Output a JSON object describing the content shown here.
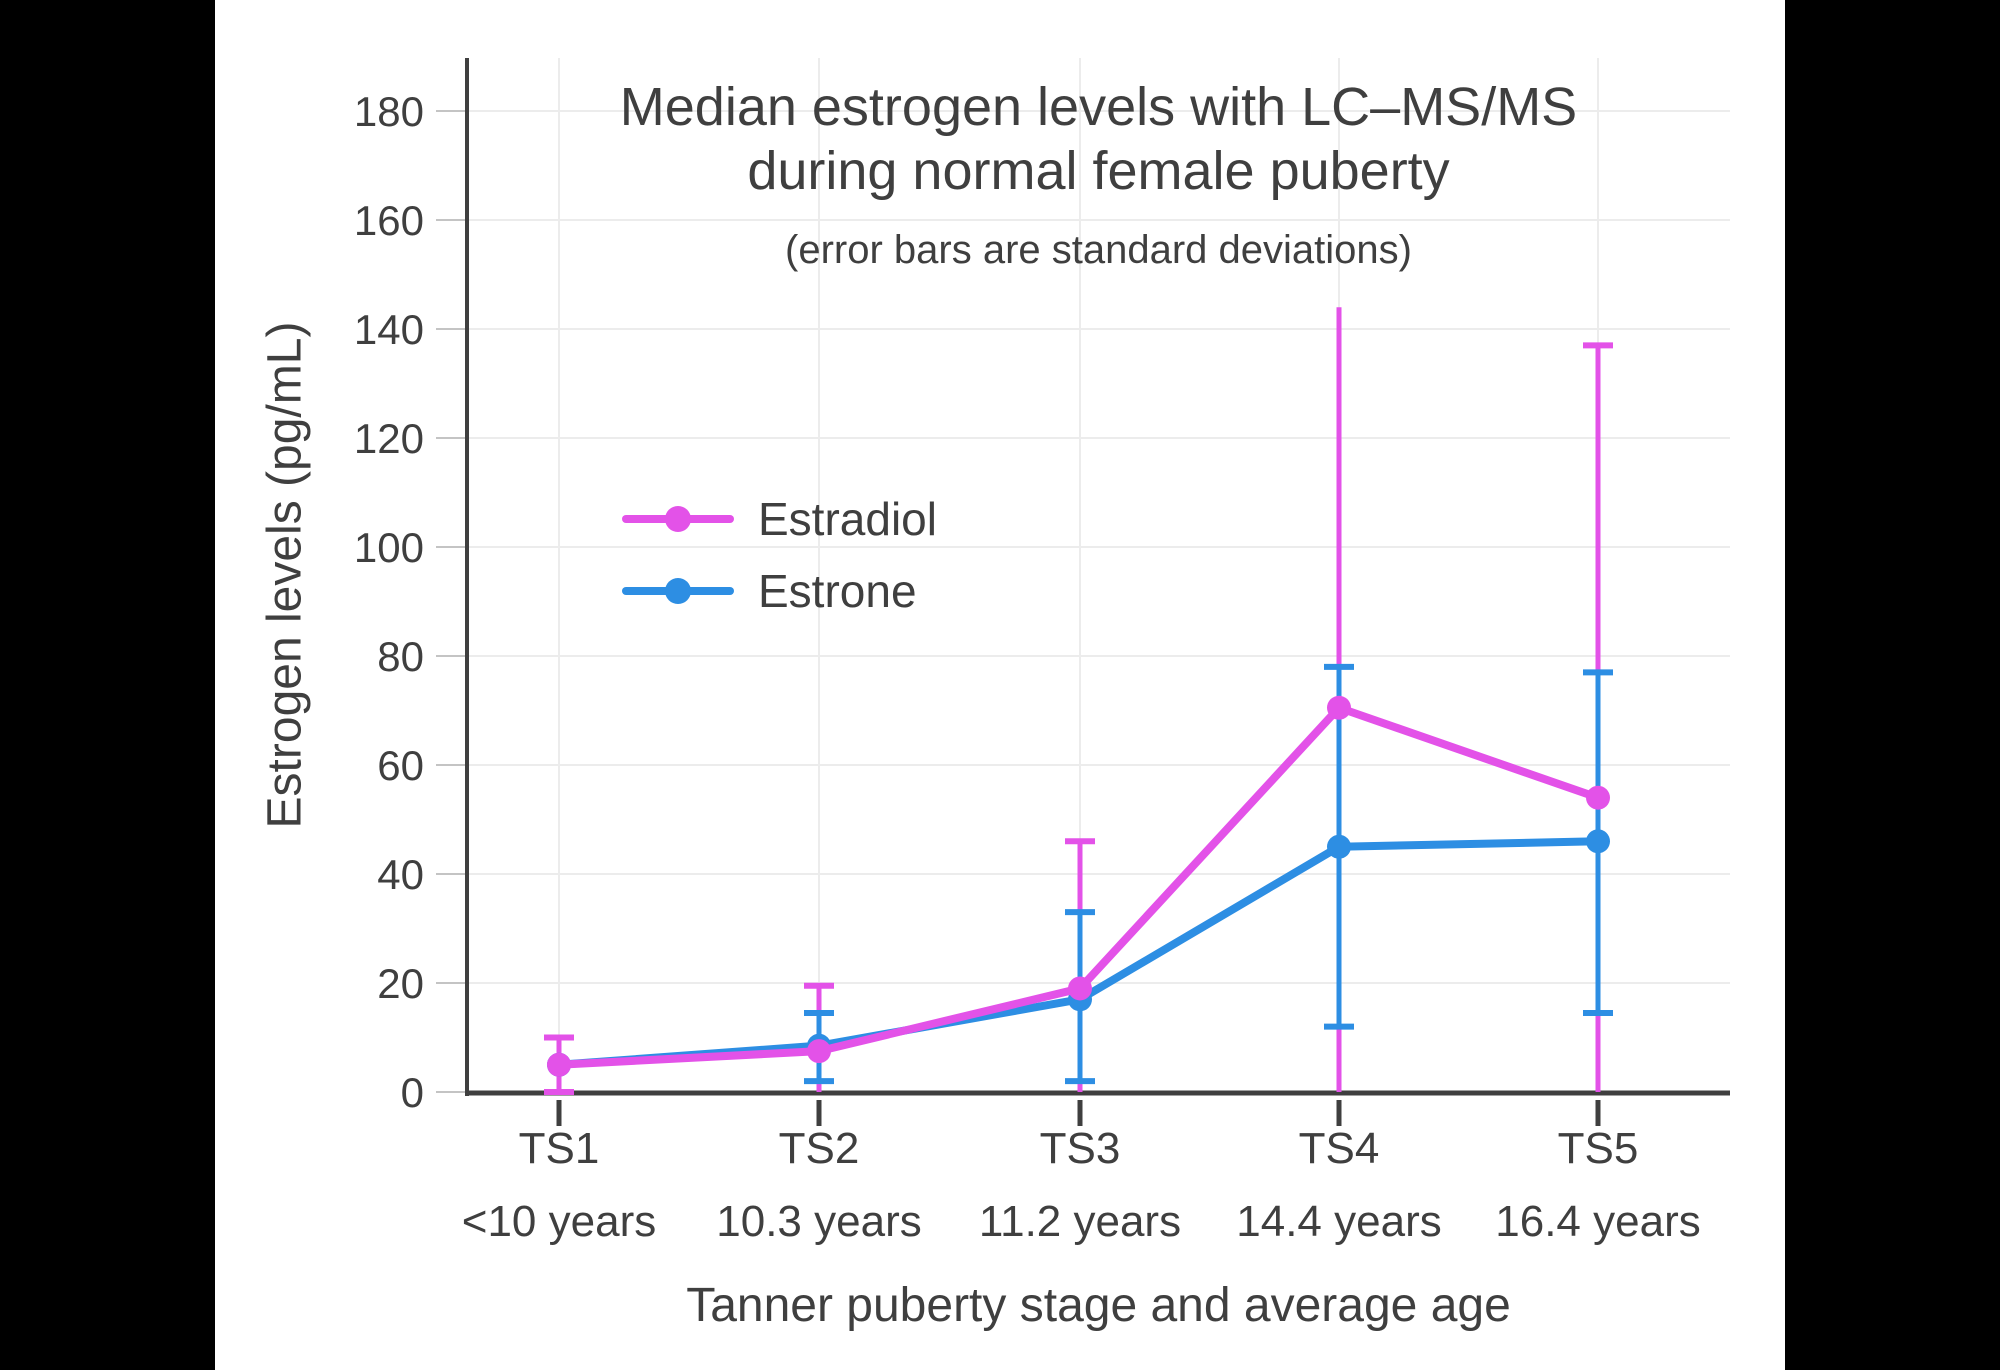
{
  "page": {
    "background_color": "#000000",
    "chart_background_color": "#FFFFFF",
    "text_color": "#3F3F3F",
    "axis_color": "#3F3F3F",
    "grid_color": "#ECECEC",
    "tick_color": "#C4C4C4"
  },
  "chart_data": {
    "type": "line",
    "title": "Median estrogen levels with LC–MS/MS during normal female puberty",
    "title_lines": [
      "Median estrogen levels with LC–MS/MS",
      "during normal female puberty"
    ],
    "subtitle": "(error bars are standard deviations)",
    "xlabel": "Tanner puberty stage and average age",
    "ylabel": "Estrogen levels (pg/mL)",
    "categories": [
      "TS1",
      "TS2",
      "TS3",
      "TS4",
      "TS5"
    ],
    "category_sublabels": [
      "<10 years",
      "10.3 years",
      "11.2 years",
      "14.4 years",
      "16.4 years"
    ],
    "yticks": [
      0,
      20,
      40,
      60,
      80,
      100,
      120,
      140,
      160,
      180
    ],
    "ylim": [
      0,
      190
    ],
    "grid": true,
    "legend_position": "inside-upper-left",
    "series": [
      {
        "name": "Estradiol",
        "color": "#E352E8",
        "values": [
          5,
          7.5,
          19,
          70.5,
          54
        ],
        "error_bars": [
          {
            "top": 10,
            "bottom": 0,
            "top_cap": true,
            "bottom_cap": true
          },
          {
            "top": 19.5,
            "bottom": 0,
            "top_cap": true,
            "bottom_cap": false
          },
          {
            "top": 46,
            "bottom": 0,
            "top_cap": true,
            "bottom_cap": false
          },
          {
            "top": 144,
            "bottom": 0,
            "top_cap": false,
            "bottom_cap": false
          },
          {
            "top": 137,
            "bottom": 0,
            "top_cap": true,
            "bottom_cap": false
          }
        ]
      },
      {
        "name": "Estrone",
        "color": "#2D8EE3",
        "values": [
          5,
          8.5,
          17,
          45,
          46
        ],
        "error_bars": [
          null,
          {
            "top": 14.5,
            "bottom": 2,
            "top_cap": true,
            "bottom_cap": true
          },
          {
            "top": 33,
            "bottom": 2,
            "top_cap": true,
            "bottom_cap": true
          },
          {
            "top": 78,
            "bottom": 12,
            "top_cap": true,
            "bottom_cap": true
          },
          {
            "top": 77,
            "bottom": 14.5,
            "top_cap": true,
            "bottom_cap": true
          }
        ]
      }
    ]
  }
}
